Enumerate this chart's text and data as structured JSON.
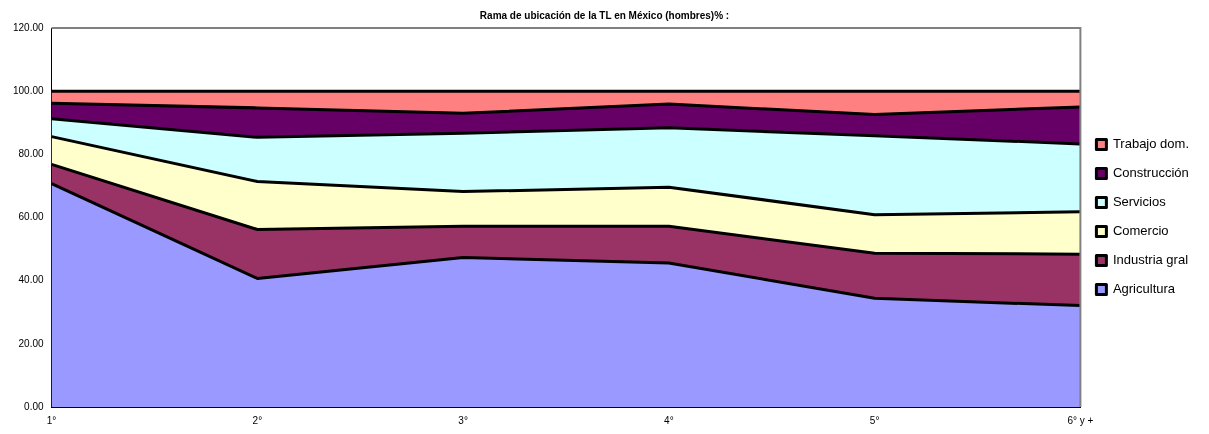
{
  "chart_data": {
    "type": "area",
    "title": "Rama de ubicación de la TL en México (hombres)% :",
    "categories": [
      "1°",
      "2°",
      "3°",
      "4°",
      "5°",
      "6° y +"
    ],
    "stacked": true,
    "grid": false,
    "legend": "right",
    "ylim": [
      0,
      120
    ],
    "yticks": [
      {
        "value": 0,
        "label": "0.00"
      },
      {
        "value": 20,
        "label": "20.00"
      },
      {
        "value": 40,
        "label": "40.00"
      },
      {
        "value": 60,
        "label": "60.00"
      },
      {
        "value": 80,
        "label": "80.00"
      },
      {
        "value": 100,
        "label": "100.00"
      },
      {
        "value": 120,
        "label": "120.00"
      }
    ],
    "series": [
      {
        "name": "Agricultura",
        "color": "#9999ff",
        "values": [
          70.7,
          40.7,
          47.3,
          45.6,
          34.4,
          32.1
        ]
      },
      {
        "name": "Industria gral",
        "color": "#993366",
        "values": [
          6.1,
          15.5,
          9.9,
          11.6,
          14.3,
          16.3
        ]
      },
      {
        "name": "Comercio",
        "color": "#ffffcc",
        "values": [
          8.8,
          15.2,
          11.0,
          12.4,
          12.2,
          13.4
        ]
      },
      {
        "name": "Servicios",
        "color": "#ccffff",
        "values": [
          5.7,
          14.0,
          18.5,
          18.8,
          25.0,
          21.5
        ]
      },
      {
        "name": "Construcción",
        "color": "#660066",
        "values": [
          4.9,
          9.3,
          6.3,
          7.5,
          6.7,
          11.7
        ]
      },
      {
        "name": "Trabajo dom.",
        "color": "#ff8080",
        "values": [
          3.8,
          5.3,
          7.0,
          4.1,
          7.4,
          5.0
        ]
      }
    ]
  }
}
